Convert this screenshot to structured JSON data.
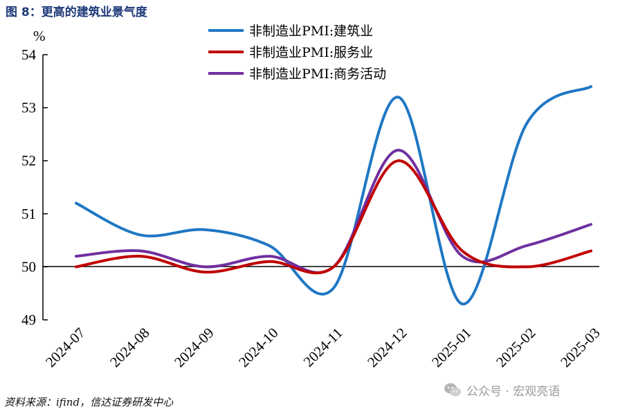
{
  "figure": {
    "title": "图 8：更高的建筑业景气度",
    "source": "资料来源：ifind，信达证券研发中心",
    "watermark": "公众号 · 宏观亮语"
  },
  "chart_data": {
    "type": "line",
    "ylabel": "%",
    "ylim": [
      49,
      54
    ],
    "yticks": [
      49,
      50,
      51,
      52,
      53,
      54
    ],
    "categories": [
      "2024-07",
      "2024-08",
      "2024-09",
      "2024-10",
      "2024-11",
      "2024-12",
      "2025-01",
      "2025-02",
      "2025-03"
    ],
    "legend_position": "top",
    "series": [
      {
        "name": "非制造业PMI:建筑业",
        "color": "#1f77c4",
        "values": [
          51.2,
          50.6,
          50.7,
          50.4,
          49.6,
          53.2,
          49.3,
          52.7,
          53.4
        ]
      },
      {
        "name": "非制造业PMI:服务业",
        "color": "#c00000",
        "values": [
          50.0,
          50.2,
          49.9,
          50.1,
          50.0,
          52.0,
          50.3,
          50.0,
          50.3
        ]
      },
      {
        "name": "非制造业PMI:商务活动",
        "color": "#7030a0",
        "values": [
          50.2,
          50.3,
          50.0,
          50.2,
          50.0,
          52.2,
          50.2,
          50.4,
          50.8
        ]
      }
    ]
  }
}
